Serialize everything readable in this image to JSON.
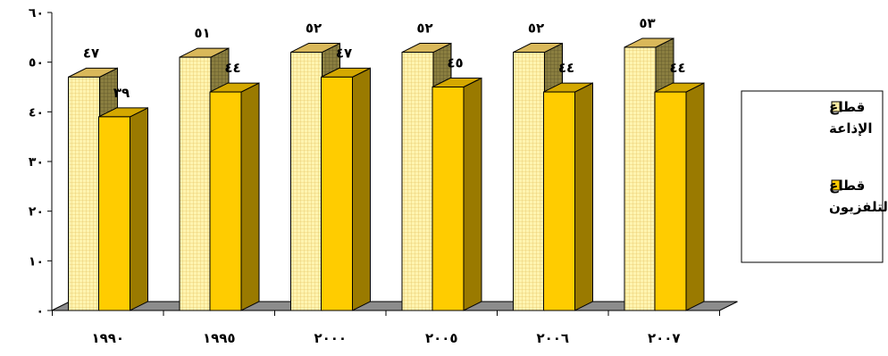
{
  "chart_data": {
    "type": "bar",
    "categories": [
      "١٩٩٠",
      "١٩٩٥",
      "٢٠٠٠",
      "٢٠٠٥",
      "٢٠٠٦",
      "٢٠٠٧"
    ],
    "series": [
      {
        "name_lines": [
          "قطاع",
          "الإذاعة"
        ],
        "values": [
          47,
          51,
          52,
          52,
          52,
          53
        ],
        "value_labels": [
          "٤٧",
          "٥١",
          "٥٢",
          "٥٢",
          "٥٢",
          "٥٣"
        ],
        "color": "#FFF4B0",
        "pattern": "grid"
      },
      {
        "name_lines": [
          "قطاع",
          "التلفزيون"
        ],
        "values": [
          39,
          44,
          47,
          45,
          44,
          44
        ],
        "value_labels": [
          "٣٩",
          "٤٤",
          "٤٧",
          "٤٥",
          "٤٤",
          "٤٤"
        ],
        "color": "#FFCC00",
        "pattern": "solid"
      }
    ],
    "ylim": [
      0,
      60
    ],
    "yticks": [
      0,
      10,
      20,
      30,
      40,
      50,
      60
    ],
    "ytick_labels": [
      "٠",
      "١٠",
      "٢٠",
      "٣٠",
      "٤٠",
      "٥٠",
      "٦٠"
    ],
    "grid": false,
    "three_d": true,
    "legend_position": "right"
  }
}
